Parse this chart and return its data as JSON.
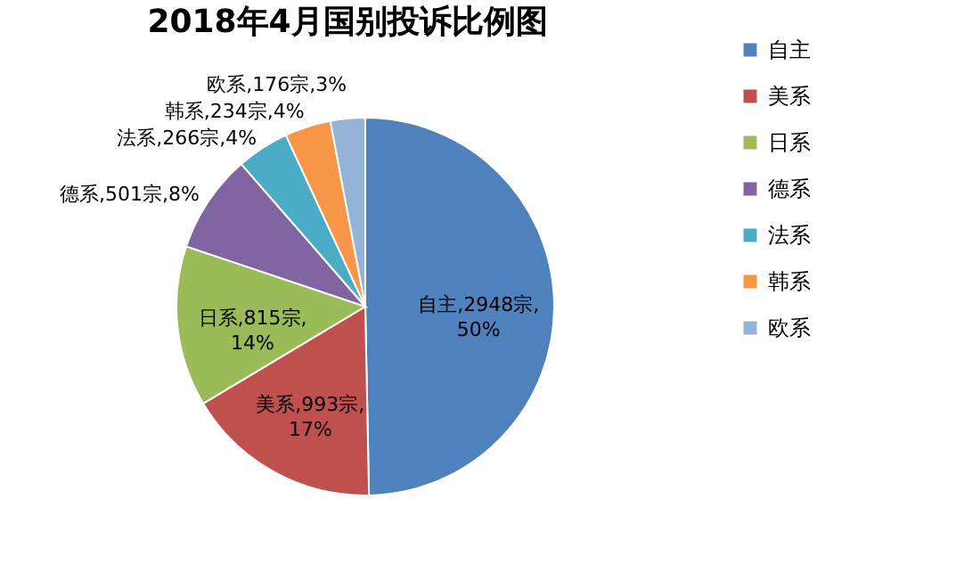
{
  "chart_data": {
    "type": "pie",
    "title": "2018年4月国别投诉比例图",
    "categories": [
      "自主",
      "美系",
      "日系",
      "德系",
      "法系",
      "韩系",
      "欧系"
    ],
    "values": [
      2948,
      993,
      815,
      501,
      266,
      234,
      176
    ],
    "colors": [
      "#4f81bd",
      "#c0504d",
      "#9bbb59",
      "#8064a2",
      "#4bacc6",
      "#f79646",
      "#95b3d7"
    ],
    "value_labels": [
      "自主,2948宗,50%",
      "美系,993宗,17%",
      "日系,815宗,14%",
      "德系,501宗,8%",
      "法系,266宗,4%",
      "韩系,234宗,4%",
      "欧系,176宗,3%"
    ],
    "legend": "right"
  }
}
